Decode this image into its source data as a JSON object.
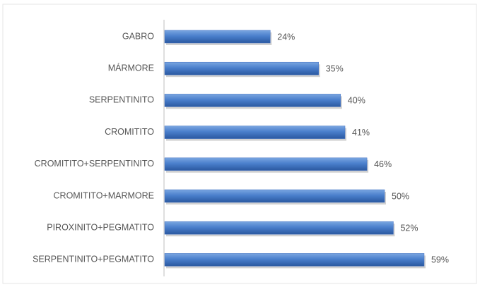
{
  "chart_data": {
    "type": "bar",
    "orientation": "horizontal",
    "categories": [
      "GABRO",
      "MÁRMORE",
      "SERPENTINITO",
      "CROMITITO",
      "CROMITITO+SERPENTINITO",
      "CROMITITO+MARMORE",
      "PIROXINITO+PEGMATITO",
      "SERPENTINITO+PEGMATITO"
    ],
    "values": [
      24,
      35,
      40,
      41,
      46,
      50,
      52,
      59
    ],
    "value_labels": [
      "24%",
      "35%",
      "40%",
      "41%",
      "46%",
      "50%",
      "52%",
      "59%"
    ],
    "color": "#4472c4"
  }
}
